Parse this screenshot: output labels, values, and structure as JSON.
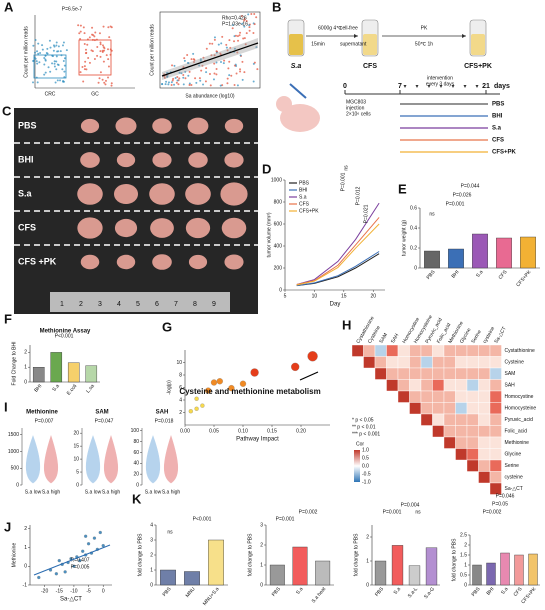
{
  "panel_labels": [
    "A",
    "B",
    "C",
    "D",
    "E",
    "F",
    "G",
    "H",
    "I",
    "J",
    "K"
  ],
  "panel_a": {
    "pvalue": "P=6.5e-7",
    "categories": [
      "CRC",
      "GC"
    ],
    "ylabel": "Count per million reads",
    "scatter_ylabel": "Count per million reads",
    "scatter_xlabel": "Sa abundance (log10)",
    "stats": [
      "Rho=0.426",
      "P=1.03e-16"
    ]
  },
  "panel_b": {
    "tube1": "S.a",
    "spin": [
      "6000g 4℃",
      "15min"
    ],
    "filter": [
      "cell-free",
      "supernatant"
    ],
    "tube2": "CFS",
    "pk": [
      "PK",
      "50℃ 1h"
    ],
    "tube3": "CFS+PK",
    "timeline": [
      "0",
      "7",
      "21",
      "days"
    ],
    "intervention": [
      "intervention",
      "every 3 days"
    ],
    "injection": [
      "MGC803",
      "injection",
      "2×10⁶ cells"
    ],
    "groups": [
      {
        "name": "PBS",
        "color": "#555555"
      },
      {
        "name": "BHI",
        "color": "#3b6fb6"
      },
      {
        "name": "S.a",
        "color": "#7b3f9e"
      },
      {
        "name": "CFS",
        "color": "#e8734a"
      },
      {
        "name": "CFS+PK",
        "color": "#f2b134"
      }
    ]
  },
  "panel_c": {
    "rows": [
      "PBS",
      "BHI",
      "S.a",
      "CFS",
      "CFS +PK"
    ],
    "ruler": [
      "1",
      "2",
      "3",
      "4",
      "5",
      "6",
      "7",
      "8",
      "9"
    ]
  },
  "panel_h": {
    "labels": [
      "Cystathionine",
      "Cysteine",
      "SAM",
      "SAH",
      "Homocystine",
      "Homocysteine",
      "Pyruvic_acid",
      "Folic_acid",
      "Methionine",
      "Glycine",
      "Serine",
      "cysteine",
      "Sa-△CT"
    ],
    "legend": [
      "* p < 0.05",
      "** p < 0.01",
      "*** p < 0.001"
    ],
    "cor_title": "Cor",
    "cor_ticks": [
      "1.0",
      "0.5",
      "0.0",
      "-0.5",
      "-1.0"
    ]
  },
  "panel_i": [
    {
      "title": "Methionine",
      "pvalue": "P=0.007",
      "categories": [
        "S.a low",
        "S.a high"
      ],
      "yticks": [
        0,
        500,
        1000,
        1500
      ],
      "ylim": [
        0,
        1700
      ]
    },
    {
      "title": "SAM",
      "pvalue": "P=0.047",
      "categories": [
        "S.a low",
        "S.a high"
      ],
      "yticks": [
        0,
        5,
        10,
        15,
        20
      ],
      "ylim": [
        0,
        22
      ]
    },
    {
      "title": "SAH",
      "pvalue": "P=0.018",
      "categories": [
        "S.a low",
        "S.a high"
      ],
      "yticks": [
        0,
        20,
        40,
        60,
        80,
        100
      ],
      "ylim": [
        0,
        105
      ]
    }
  ],
  "chart_data": [
    {
      "type": "line",
      "xlabel": "Day",
      "ylabel": "tumor volume (mm³)",
      "x": [
        7,
        10,
        14,
        17,
        21
      ],
      "xlim": [
        5,
        22
      ],
      "xticks": [
        5,
        10,
        15,
        20
      ],
      "ylim": [
        0,
        1000
      ],
      "yticks": [
        0,
        200,
        400,
        600,
        800,
        1000
      ],
      "series": [
        {
          "name": "PBS",
          "color": "#222222",
          "values": [
            40,
            60,
            120,
            200,
            330
          ]
        },
        {
          "name": "BHI",
          "color": "#3b6fb6",
          "values": [
            40,
            65,
            130,
            215,
            350
          ]
        },
        {
          "name": "S.a",
          "color": "#7b3f9e",
          "values": [
            50,
            95,
            260,
            460,
            790
          ]
        },
        {
          "name": "CFS",
          "color": "#e8734a",
          "values": [
            50,
            85,
            225,
            410,
            660
          ]
        },
        {
          "name": "CFS+PK",
          "color": "#f2b134",
          "values": [
            45,
            80,
            205,
            380,
            600
          ]
        }
      ],
      "annotations": [
        "P=0.001",
        "P=0.012",
        "ns",
        "P=0.021"
      ]
    },
    {
      "type": "bar",
      "ylabel": "tumor weight (g)",
      "categories": [
        "PBS",
        "BHI",
        "S.a",
        "CFS",
        "CFS+PK"
      ],
      "values": [
        0.17,
        0.19,
        0.34,
        0.3,
        0.31
      ],
      "colors": [
        "#666666",
        "#3b6fb6",
        "#9b59b6",
        "#e86a92",
        "#f2b134"
      ],
      "ylim": [
        0,
        0.6
      ],
      "yticks": [
        0,
        0.2,
        0.4,
        0.6
      ],
      "annotations": [
        "P=0.044",
        "P=0.026",
        "P=0.001",
        "ns"
      ]
    },
    {
      "type": "bar",
      "title": "Methionine Assay",
      "ylabel": "Fold Change to BHI",
      "categories": [
        "BHI",
        "S.a",
        "E.coli",
        "L.sa"
      ],
      "values": [
        1,
        2,
        1.3,
        1.1
      ],
      "colors": [
        "#888888",
        "#6aa84f",
        "#f6d06b",
        "#b6d7a8"
      ],
      "ylim": [
        0,
        2.5
      ],
      "yticks": [
        0,
        1,
        2
      ],
      "annotations": [
        "P<0.001"
      ]
    },
    {
      "type": "scatter",
      "xlabel": "Pathway Impact",
      "ylabel": "-log(p)",
      "x": [
        0.01,
        0.02,
        0.03,
        0.02,
        0.04,
        0.05,
        0.06,
        0.08,
        0.1,
        0.12,
        0.19,
        0.22
      ],
      "values": [
        2.2,
        2.6,
        3.1,
        4.2,
        5.5,
        6.8,
        7,
        5.9,
        6.6,
        8.4,
        9.3,
        11
      ],
      "sizes": [
        2,
        2,
        2,
        2,
        3,
        3,
        3,
        3,
        3,
        4,
        4,
        5
      ],
      "xlim": [
        0,
        0.25
      ],
      "xticks": [
        {
          "value": 0,
          "label": "0.00"
        },
        {
          "value": 0.05,
          "label": "0.05"
        },
        {
          "value": 0.1,
          "label": "0.10"
        },
        {
          "value": 0.15,
          "label": "0.15"
        },
        {
          "value": 0.2,
          "label": "0.20"
        }
      ],
      "ylim": [
        0,
        12
      ],
      "yticks": [
        2,
        4,
        6,
        8,
        10
      ],
      "annotations": [
        "Cysteine and methionine metabolism"
      ]
    },
    {
      "type": "scatter",
      "xlabel": "Sa-△CT",
      "ylabel": "Methionine",
      "x": [
        -22,
        -18,
        -16,
        -14,
        -13,
        -12,
        -11,
        -10,
        -9,
        -8,
        -7,
        -6,
        -5,
        -4,
        -3,
        -2,
        -1,
        0,
        -15,
        -6
      ],
      "values": [
        -0.6,
        -0.2,
        -0.4,
        0.1,
        -0.3,
        0.2,
        0.4,
        0,
        0.5,
        0.3,
        0.8,
        0.6,
        1.2,
        0.7,
        1.5,
        0.9,
        1.8,
        1.1,
        0.3,
        1.6
      ],
      "sizes": [
        1.5,
        1.5,
        1.5,
        1.5,
        1.5,
        1.5,
        1.5,
        1.5,
        1.5,
        1.5,
        1.5,
        1.5,
        1.5,
        1.5,
        1.5,
        1.5,
        1.5,
        1.5,
        1.5,
        1.5
      ],
      "color": "#4a90c2",
      "xlim": [
        -25,
        3
      ],
      "xticks": [
        -20,
        -15,
        -10,
        -5,
        0
      ],
      "ylim": [
        -1,
        2.2
      ],
      "yticks": [
        -1,
        0,
        1,
        2
      ],
      "annotations": [
        "R=0.407",
        "P=0.005"
      ]
    },
    {
      "type": "bar",
      "ylabel": "fold change to PBS",
      "categories": [
        "PBS",
        "MNU",
        "MNU+S.a"
      ],
      "values": [
        1,
        0.9,
        3
      ],
      "colors": [
        "#6f7fa8",
        "#6f7fa8",
        "#f7e08a"
      ],
      "ylim": [
        0,
        4
      ],
      "yticks": [
        0,
        1,
        2,
        3,
        4
      ],
      "annotations": [
        "ns",
        "P<0.001"
      ]
    },
    {
      "type": "bar",
      "ylabel": "fold change to PBS",
      "categories": [
        "PBS",
        "S.a",
        "S.a heat"
      ],
      "values": [
        1,
        1.9,
        1.2
      ],
      "colors": [
        "#999999",
        "#f25c5c",
        "#bbbbbb"
      ],
      "ylim": [
        0,
        3
      ],
      "yticks": [
        0,
        1,
        2,
        3
      ],
      "annotations": [
        "P=0.001",
        "P=0.002"
      ]
    },
    {
      "type": "bar",
      "ylabel": "fold change to PBS",
      "categories": [
        "PBS",
        "S.a",
        "S.a-L",
        "S.a-G"
      ],
      "values": [
        1,
        1.65,
        0.8,
        1.55
      ],
      "colors": [
        "#999999",
        "#f25c5c",
        "#cccccc",
        "#b38fd1"
      ],
      "ylim": [
        0,
        2.5
      ],
      "yticks": [
        0,
        1,
        2
      ],
      "annotations": [
        "P=0.001",
        "ns",
        "P=0.004"
      ]
    },
    {
      "type": "bar",
      "ylabel": "fold change to PBS",
      "categories": [
        "PBS",
        "BHI",
        "S.a",
        "CFS",
        "CFS+PK"
      ],
      "values": [
        1,
        1.1,
        1.6,
        1.5,
        1.55
      ],
      "colors": [
        "#888888",
        "#7b68b0",
        "#e889b0",
        "#f29a9a",
        "#f2c46a"
      ],
      "ylim": [
        0,
        2.5
      ],
      "yticks": [
        0,
        0.5,
        1,
        1.5,
        2,
        2.5
      ],
      "annotations": [
        "P=0.046",
        "P=0.05",
        "P=0.002"
      ]
    }
  ]
}
